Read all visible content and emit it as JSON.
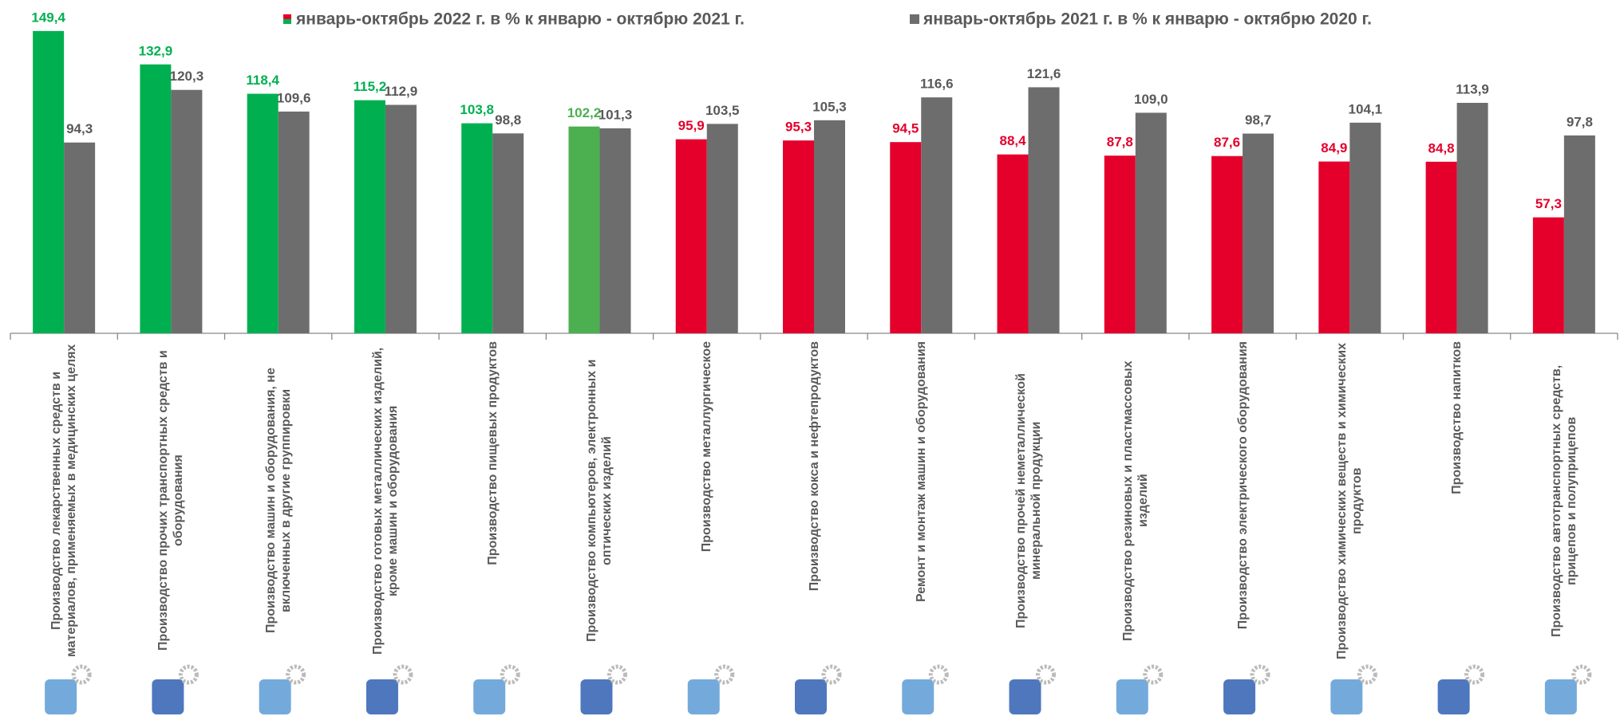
{
  "chart_data": {
    "type": "bar",
    "categories": [
      "Производство лекарственных средств и материалов, применяемых в медицинских целях",
      "Производство прочих транспортных средств и оборудования",
      "Производство машин и оборудования, не включенных в другие группировки",
      "Производство готовых металлических изделий, кроме машин и оборудования",
      "Производство пищевых продуктов",
      "Производство компьютеров, электронных и оптических изделий",
      "Производство металлургическое",
      "Производство кокса и нефтепродуктов",
      "Ремонт и монтаж машин и оборудования",
      "Производство прочей неметаллической минеральной продукции",
      "Производство резиновых и пластмассовых изделий",
      "Производство электрического оборудования",
      "Производство химических веществ и химических продуктов",
      "Производство напитков",
      "Производство автотранспортных средств, прицепов и полуприцепов"
    ],
    "series": [
      {
        "name": "январь-октябрь 2022 г. в % к январю - октябрю 2021 г.",
        "colors": [
          "#00b050",
          "#00b050",
          "#00b050",
          "#00b050",
          "#00b050",
          "#4caf50",
          "#e4002b",
          "#e4002b",
          "#e4002b",
          "#e4002b",
          "#e4002b",
          "#e4002b",
          "#e4002b",
          "#e4002b",
          "#e4002b"
        ],
        "values": [
          149.4,
          132.9,
          118.4,
          115.2,
          103.8,
          102.2,
          95.9,
          95.3,
          94.5,
          88.4,
          87.8,
          87.6,
          84.9,
          84.8,
          57.3
        ],
        "value_labels": [
          "149,4",
          "132,9",
          "118,4",
          "115,2",
          "103,8",
          "102,2",
          "95,9",
          "95,3",
          "94,5",
          "88,4",
          "87,8",
          "87,6",
          "84,9",
          "84,8",
          "57,3"
        ]
      },
      {
        "name": "январь-октябрь 2021 г. в % к январю - октябрю 2020 г.",
        "color": "#6d6d6d",
        "values": [
          94.3,
          120.3,
          109.6,
          112.9,
          98.8,
          101.3,
          103.5,
          105.3,
          116.6,
          121.6,
          109.0,
          98.7,
          104.1,
          113.9,
          97.8
        ],
        "value_labels": [
          "94,3",
          "120,3",
          "109,6",
          "112,9",
          "98,8",
          "101,3",
          "103,5",
          "105,3",
          "116,6",
          "121,6",
          "109,0",
          "98,7",
          "104,1",
          "113,9",
          "97,8"
        ]
      }
    ],
    "ylim": [
      0,
      160
    ],
    "legend": "top"
  }
}
